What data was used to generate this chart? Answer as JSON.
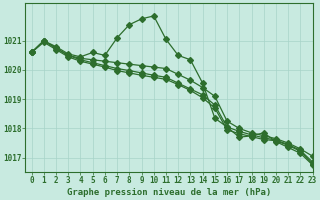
{
  "title": "Graphe pression niveau de la mer (hPa)",
  "background_color": "#c8eae0",
  "grid_color": "#a8d4c8",
  "line_color": "#2d6e2d",
  "xlim": [
    -0.5,
    23
  ],
  "ylim": [
    1016.5,
    1022.3
  ],
  "yticks": [
    1017,
    1018,
    1019,
    1020,
    1021
  ],
  "xtick_labels": [
    "0",
    "1",
    "2",
    "3",
    "4",
    "5",
    "6",
    "7",
    "8",
    "9",
    "10",
    "11",
    "12",
    "13",
    "14",
    "15",
    "16",
    "17",
    "18",
    "19",
    "20",
    "21",
    "22",
    "23"
  ],
  "series": [
    [
      1020.6,
      1021.0,
      1020.8,
      1020.55,
      1020.45,
      1020.6,
      1020.5,
      1021.1,
      1021.55,
      1021.75,
      1021.85,
      1021.05,
      1020.5,
      1020.35,
      1019.55,
      1018.35,
      1018.05,
      1017.7,
      1017.75,
      1017.85,
      1017.55,
      1017.35,
      1017.15,
      1016.75
    ],
    [
      1020.6,
      1021.0,
      1020.75,
      1020.5,
      1020.4,
      1020.35,
      1020.3,
      1020.25,
      1020.2,
      1020.15,
      1020.1,
      1020.05,
      1019.85,
      1019.65,
      1019.4,
      1019.1,
      1018.25,
      1018.0,
      1017.85,
      1017.75,
      1017.65,
      1017.5,
      1017.3,
      1017.05
    ],
    [
      1020.6,
      1021.0,
      1020.75,
      1020.5,
      1020.35,
      1020.25,
      1020.15,
      1020.05,
      1019.98,
      1019.9,
      1019.82,
      1019.75,
      1019.55,
      1019.35,
      1019.15,
      1018.8,
      1018.05,
      1017.9,
      1017.78,
      1017.68,
      1017.6,
      1017.45,
      1017.25,
      1016.85
    ],
    [
      1020.6,
      1020.95,
      1020.7,
      1020.45,
      1020.3,
      1020.2,
      1020.1,
      1019.98,
      1019.9,
      1019.82,
      1019.75,
      1019.68,
      1019.5,
      1019.3,
      1019.05,
      1018.7,
      1017.95,
      1017.82,
      1017.72,
      1017.62,
      1017.58,
      1017.42,
      1017.22,
      1016.78
    ]
  ],
  "marker_size": 3.0,
  "lw": 0.9,
  "fontsize_title": 6.5,
  "fontsize_ticks": 5.5
}
